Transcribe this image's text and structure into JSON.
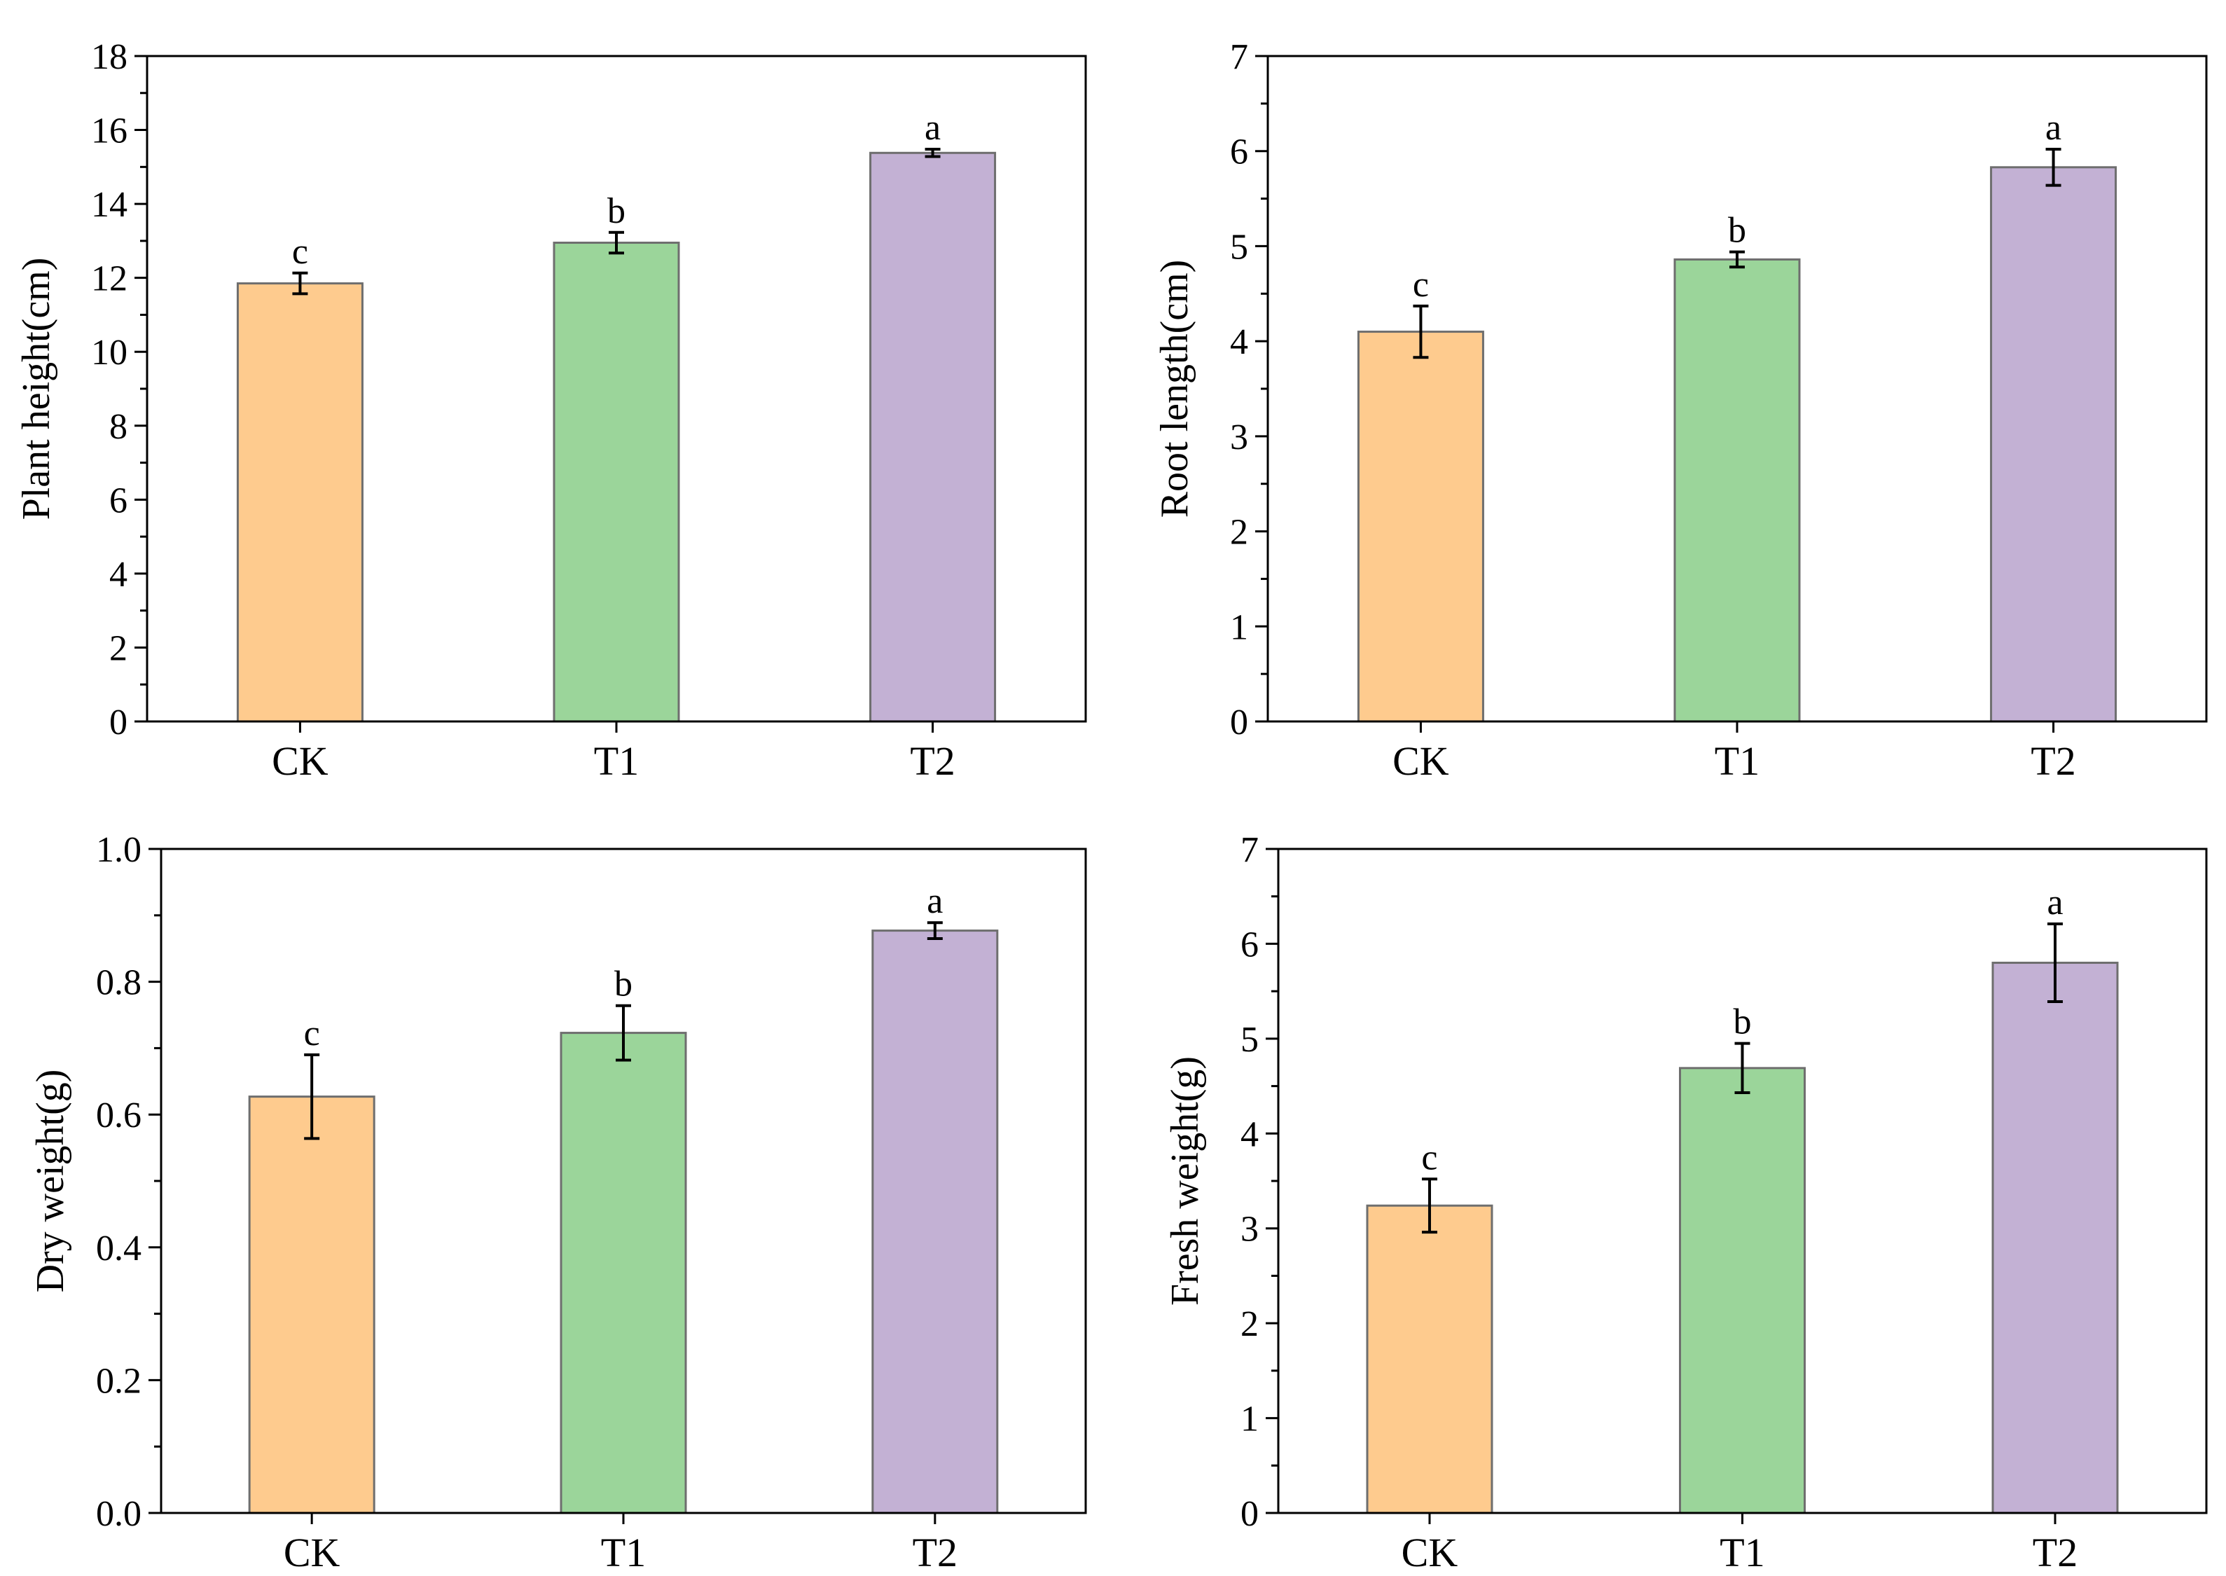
{
  "figure": {
    "categories": [
      "CK",
      "T1",
      "T2"
    ],
    "colors": {
      "CK": "#FECB8E",
      "T1": "#9BD59A",
      "T2": "#C3B1D4",
      "bar_stroke": "#6E6E6E",
      "axis": "#000000"
    }
  },
  "chart_data": [
    {
      "type": "bar",
      "title": "",
      "xlabel": "",
      "ylabel": "Plant height(cm)",
      "categories": [
        "CK",
        "T1",
        "T2"
      ],
      "values": [
        11.85,
        12.95,
        15.38
      ],
      "errors": [
        0.28,
        0.28,
        0.1
      ],
      "significance": [
        "c",
        "b",
        "a"
      ],
      "ylim": [
        0,
        18
      ],
      "yticks": [
        0,
        2,
        4,
        6,
        8,
        10,
        12,
        14,
        16,
        18
      ],
      "ytick_labels": [
        "0",
        "2",
        "4",
        "6",
        "8",
        "10",
        "12",
        "14",
        "16",
        "18"
      ]
    },
    {
      "type": "bar",
      "title": "",
      "xlabel": "",
      "ylabel": "Root length(cm)",
      "categories": [
        "CK",
        "T1",
        "T2"
      ],
      "values": [
        4.1,
        4.86,
        5.83
      ],
      "errors": [
        0.27,
        0.08,
        0.19
      ],
      "significance": [
        "c",
        "b",
        "a"
      ],
      "ylim": [
        0,
        7
      ],
      "yticks": [
        0,
        1,
        2,
        3,
        4,
        5,
        6,
        7
      ],
      "ytick_labels": [
        "0",
        "1",
        "2",
        "3",
        "4",
        "5",
        "6",
        "7"
      ]
    },
    {
      "type": "bar",
      "title": "",
      "xlabel": "",
      "ylabel": "Dry weight(g)",
      "categories": [
        "CK",
        "T1",
        "T2"
      ],
      "values": [
        0.627,
        0.723,
        0.877
      ],
      "errors": [
        0.063,
        0.041,
        0.012
      ],
      "significance": [
        "c",
        "b",
        "a"
      ],
      "ylim": [
        0,
        1.0
      ],
      "yticks": [
        0,
        0.2,
        0.4,
        0.6,
        0.8,
        1.0
      ],
      "ytick_labels": [
        "0.0",
        "0.2",
        "0.4",
        "0.6",
        "0.8",
        "1.0"
      ]
    },
    {
      "type": "bar",
      "title": "",
      "xlabel": "",
      "ylabel": "Fresh weight(g)",
      "categories": [
        "CK",
        "T1",
        "T2"
      ],
      "values": [
        3.24,
        4.69,
        5.8
      ],
      "errors": [
        0.28,
        0.26,
        0.41
      ],
      "significance": [
        "c",
        "b",
        "a"
      ],
      "ylim": [
        0,
        7
      ],
      "yticks": [
        0,
        1,
        2,
        3,
        4,
        5,
        6,
        7
      ],
      "ytick_labels": [
        "0",
        "1",
        "2",
        "3",
        "4",
        "5",
        "6",
        "7"
      ]
    }
  ]
}
